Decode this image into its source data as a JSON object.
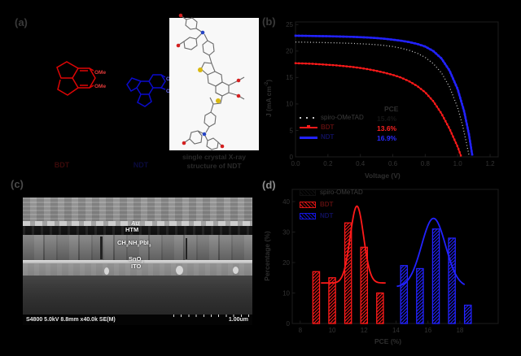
{
  "figure": {
    "background": "#000000"
  },
  "accents": {
    "red": "#ff1a1a",
    "blue": "#2222ff",
    "gray_dots": "#c8c8c8"
  },
  "panels": {
    "a": {
      "label": "(a)",
      "left_molecule": {
        "name": "BDT",
        "ome": [
          "OMe",
          "OMe"
        ]
      },
      "right_molecule": {
        "name": "NDT",
        "ome": [
          "OMe",
          "OMe"
        ]
      },
      "xray_caption": [
        "single crystal X-ray",
        "structure of NDT"
      ]
    },
    "b": {
      "label": "(b)",
      "legend": {
        "header": "PCE",
        "entries": [
          {
            "name": "spiro-OMeTAD",
            "pce": "15.4%"
          },
          {
            "name": "BDT",
            "pce": "13.6%"
          },
          {
            "name": "NDT",
            "pce": "16.9%"
          }
        ]
      },
      "ylabel_parts": {
        "pre": "J (mA cm",
        "sup": "-2",
        "post": ")"
      },
      "chart_data": {
        "type": "line",
        "xlabel": "Voltage (V)",
        "ylabel": "J (mA cm-2)",
        "xlim": [
          0,
          1.25
        ],
        "ylim": [
          0,
          25.5
        ],
        "xticks": [
          "0.0",
          "0.2",
          "0.4",
          "0.6",
          "0.8",
          "1.0",
          "1.2"
        ],
        "yticks": [
          0,
          5,
          10,
          15,
          20,
          25
        ],
        "series": [
          {
            "name": "spiro-OMeTAD",
            "color": "#c8c8c8",
            "line": "dotted",
            "width": 1.3,
            "pce": "15.4%",
            "points": [
              [
                0,
                21.7
              ],
              [
                0.05,
                21.68
              ],
              [
                0.1,
                21.65
              ],
              [
                0.15,
                21.62
              ],
              [
                0.2,
                21.58
              ],
              [
                0.25,
                21.55
              ],
              [
                0.3,
                21.5
              ],
              [
                0.35,
                21.45
              ],
              [
                0.4,
                21.38
              ],
              [
                0.45,
                21.3
              ],
              [
                0.5,
                21.2
              ],
              [
                0.55,
                21.05
              ],
              [
                0.6,
                20.85
              ],
              [
                0.65,
                20.55
              ],
              [
                0.7,
                20.15
              ],
              [
                0.75,
                19.6
              ],
              [
                0.8,
                18.8
              ],
              [
                0.85,
                17.6
              ],
              [
                0.9,
                15.9
              ],
              [
                0.95,
                13.2
              ],
              [
                1.0,
                9.3
              ],
              [
                1.03,
                6.0
              ],
              [
                1.05,
                3.2
              ],
              [
                1.07,
                0.3
              ]
            ]
          },
          {
            "name": "BDT",
            "color": "#ff1a1a",
            "line": "solid",
            "width": 1.6,
            "marker": 2.4,
            "pce": "13.6%",
            "points": [
              [
                0,
                17.7
              ],
              [
                0.05,
                17.65
              ],
              [
                0.1,
                17.6
              ],
              [
                0.15,
                17.5
              ],
              [
                0.2,
                17.4
              ],
              [
                0.25,
                17.3
              ],
              [
                0.3,
                17.15
              ],
              [
                0.35,
                17.0
              ],
              [
                0.4,
                16.8
              ],
              [
                0.45,
                16.55
              ],
              [
                0.5,
                16.25
              ],
              [
                0.55,
                15.9
              ],
              [
                0.6,
                15.5
              ],
              [
                0.65,
                15.0
              ],
              [
                0.7,
                14.3
              ],
              [
                0.75,
                13.4
              ],
              [
                0.8,
                12.2
              ],
              [
                0.85,
                10.5
              ],
              [
                0.9,
                8.2
              ],
              [
                0.95,
                5.3
              ],
              [
                1.0,
                1.9
              ],
              [
                1.02,
                0.2
              ]
            ]
          },
          {
            "name": "NDT",
            "color": "#2222ff",
            "line": "solid",
            "width": 2.4,
            "marker": 2.6,
            "pce": "16.9%",
            "points": [
              [
                0,
                22.9
              ],
              [
                0.05,
                22.88
              ],
              [
                0.1,
                22.85
              ],
              [
                0.15,
                22.82
              ],
              [
                0.2,
                22.8
              ],
              [
                0.25,
                22.76
              ],
              [
                0.3,
                22.72
              ],
              [
                0.35,
                22.68
              ],
              [
                0.4,
                22.62
              ],
              [
                0.45,
                22.55
              ],
              [
                0.5,
                22.45
              ],
              [
                0.55,
                22.32
              ],
              [
                0.6,
                22.15
              ],
              [
                0.65,
                21.95
              ],
              [
                0.7,
                21.7
              ],
              [
                0.75,
                21.35
              ],
              [
                0.8,
                20.85
              ],
              [
                0.85,
                20.0
              ],
              [
                0.9,
                18.6
              ],
              [
                0.95,
                16.3
              ],
              [
                1.0,
                12.8
              ],
              [
                1.04,
                8.6
              ],
              [
                1.07,
                4.2
              ],
              [
                1.09,
                0.3
              ]
            ]
          }
        ]
      }
    },
    "c": {
      "label": "(c)",
      "annotations": {
        "au": "Au",
        "htm": "HTM",
        "pvk_parts": [
          "CH",
          "3",
          "NH",
          "3",
          "PbI",
          "3"
        ],
        "sno2_parts": [
          "SnO",
          "2"
        ],
        "ito": "ITO"
      },
      "status_bar": {
        "info": "S4800 5.0kV 8.8mm x40.0k SE(M)",
        "scale": "1.00um"
      }
    },
    "d": {
      "label": "(d)",
      "legend": [
        "spiro-OMeTAD",
        "BDT",
        "NDT"
      ],
      "chart_data": {
        "type": "bar",
        "xlabel": "PCE (%)",
        "ylabel": "Percentage (%)",
        "xlim": [
          7.5,
          20.4
        ],
        "ylim": [
          0,
          44
        ],
        "xticks": [
          8,
          10,
          12,
          14,
          16,
          18
        ],
        "yticks": [
          0,
          10,
          20,
          30,
          40
        ],
        "bin_width": 0.42,
        "series": [
          {
            "name": "BDT",
            "color": "#ff1a1a",
            "centers": [
              9,
              10,
              11,
              12,
              13
            ],
            "values": [
              17,
              15,
              33,
              25,
              10
            ],
            "fit": {
              "base": 13.3,
              "amp": 25.2,
              "mu": 11.55,
              "sigma": 0.42,
              "range": [
                9.3,
                13.4
              ]
            }
          },
          {
            "name": "NDT",
            "color": "#2222ff",
            "centers": [
              14.5,
              15.5,
              16.5,
              17.5,
              18.5
            ],
            "values": [
              19,
              18,
              31,
              28,
              6
            ],
            "fit": {
              "base": 12.0,
              "amp": 22.5,
              "mu": 16.35,
              "sigma": 0.75,
              "range": [
                14.05,
                18.35
              ]
            }
          }
        ]
      }
    }
  }
}
